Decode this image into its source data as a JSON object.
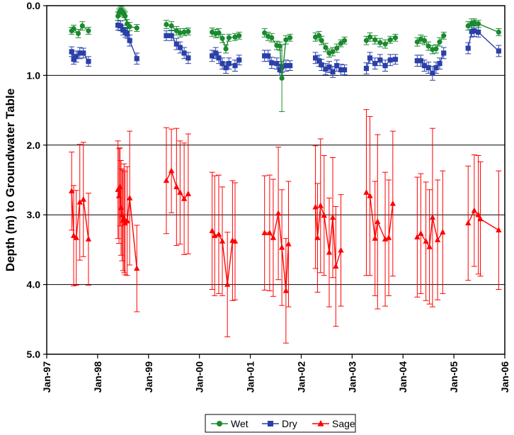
{
  "chart_data": {
    "type": "scatter",
    "title": "",
    "xlabel": "",
    "ylabel": "Depth (m) to Groundwater Table",
    "ylim": [
      0,
      5
    ],
    "y_inverted": true,
    "y_ticks": [
      "0.0",
      "1.0",
      "2.0",
      "3.0",
      "4.0",
      "5.0"
    ],
    "x_ticks": [
      "Jan-97",
      "Jan-98",
      "Jan-99",
      "Jan-00",
      "Jan-01",
      "Jan-02",
      "Jan-03",
      "Jan-04",
      "Jan-05",
      "Jan-06"
    ],
    "xlim": [
      0,
      9
    ],
    "gridlines_y": [
      1.0,
      2.0,
      3.0,
      4.0
    ],
    "legend_position": "bottom-center",
    "series": [
      {
        "name": "Wet",
        "color": "#1a8a2e",
        "marker": "circle",
        "segments": [
          [
            [
              0.49,
              0.36,
              0.05
            ],
            [
              0.53,
              0.33,
              0.05
            ],
            [
              0.62,
              0.4,
              0.06
            ],
            [
              0.7,
              0.29,
              0.06
            ],
            [
              0.82,
              0.36,
              0.05
            ]
          ],
          [
            [
              1.4,
              0.15,
              0.06
            ],
            [
              1.42,
              0.1,
              0.05
            ],
            [
              1.44,
              0.08,
              0.05
            ],
            [
              1.46,
              0.06,
              0.05
            ],
            [
              1.48,
              0.08,
              0.05
            ],
            [
              1.5,
              0.1,
              0.05
            ],
            [
              1.52,
              0.12,
              0.05
            ],
            [
              1.54,
              0.15,
              0.06
            ],
            [
              1.58,
              0.26,
              0.06
            ],
            [
              1.63,
              0.3,
              0.06
            ],
            [
              1.77,
              0.32,
              0.05
            ]
          ],
          [
            [
              2.35,
              0.27,
              0.06
            ],
            [
              2.45,
              0.29,
              0.06
            ],
            [
              2.55,
              0.36,
              0.06
            ],
            [
              2.62,
              0.39,
              0.06
            ],
            [
              2.7,
              0.38,
              0.05
            ],
            [
              2.78,
              0.37,
              0.05
            ]
          ],
          [
            [
              3.25,
              0.38,
              0.06
            ],
            [
              3.32,
              0.4,
              0.06
            ],
            [
              3.38,
              0.39,
              0.06
            ],
            [
              3.45,
              0.47,
              0.06
            ],
            [
              3.52,
              0.62,
              0.06
            ],
            [
              3.58,
              0.46,
              0.05
            ],
            [
              3.7,
              0.45,
              0.05
            ],
            [
              3.78,
              0.43,
              0.05
            ]
          ],
          [
            [
              4.28,
              0.39,
              0.06
            ],
            [
              4.35,
              0.44,
              0.06
            ],
            [
              4.42,
              0.46,
              0.06
            ],
            [
              4.52,
              0.57,
              0.06
            ],
            [
              4.58,
              0.58,
              0.06
            ],
            [
              4.62,
              1.04,
              0.48
            ],
            [
              4.7,
              0.49,
              0.06
            ],
            [
              4.78,
              0.46,
              0.05
            ]
          ],
          [
            [
              5.28,
              0.45,
              0.06
            ],
            [
              5.35,
              0.43,
              0.06
            ],
            [
              5.4,
              0.5,
              0.06
            ],
            [
              5.48,
              0.6,
              0.06
            ],
            [
              5.55,
              0.68,
              0.06
            ],
            [
              5.62,
              0.66,
              0.06
            ],
            [
              5.7,
              0.61,
              0.06
            ],
            [
              5.78,
              0.54,
              0.05
            ],
            [
              5.85,
              0.5,
              0.05
            ]
          ],
          [
            [
              6.28,
              0.5,
              0.06
            ],
            [
              6.35,
              0.45,
              0.06
            ],
            [
              6.45,
              0.49,
              0.06
            ],
            [
              6.55,
              0.53,
              0.06
            ],
            [
              6.65,
              0.55,
              0.06
            ],
            [
              6.75,
              0.49,
              0.05
            ],
            [
              6.85,
              0.46,
              0.05
            ]
          ],
          [
            [
              7.28,
              0.52,
              0.06
            ],
            [
              7.35,
              0.48,
              0.06
            ],
            [
              7.42,
              0.5,
              0.06
            ],
            [
              7.5,
              0.58,
              0.06
            ],
            [
              7.58,
              0.63,
              0.06
            ],
            [
              7.65,
              0.62,
              0.06
            ],
            [
              7.72,
              0.52,
              0.06
            ],
            [
              7.8,
              0.43,
              0.05
            ]
          ],
          [
            [
              8.28,
              0.29,
              0.06
            ],
            [
              8.35,
              0.25,
              0.06
            ],
            [
              8.4,
              0.24,
              0.05
            ],
            [
              8.48,
              0.26,
              0.05
            ],
            [
              8.88,
              0.38,
              0.05
            ]
          ]
        ]
      },
      {
        "name": "Dry",
        "color": "#2a3fa8",
        "marker": "square",
        "segments": [
          [
            [
              0.49,
              0.66,
              0.07
            ],
            [
              0.53,
              0.77,
              0.07
            ],
            [
              0.58,
              0.73,
              0.08
            ],
            [
              0.65,
              0.68,
              0.08
            ],
            [
              0.72,
              0.68,
              0.07
            ],
            [
              0.82,
              0.8,
              0.07
            ]
          ],
          [
            [
              1.4,
              0.28,
              0.07
            ],
            [
              1.45,
              0.29,
              0.07
            ],
            [
              1.5,
              0.35,
              0.07
            ],
            [
              1.55,
              0.38,
              0.07
            ],
            [
              1.58,
              0.4,
              0.07
            ],
            [
              1.63,
              0.5,
              0.08
            ],
            [
              1.77,
              0.76,
              0.08
            ]
          ],
          [
            [
              2.35,
              0.43,
              0.07
            ],
            [
              2.45,
              0.43,
              0.07
            ],
            [
              2.55,
              0.55,
              0.08
            ],
            [
              2.62,
              0.6,
              0.08
            ],
            [
              2.7,
              0.68,
              0.08
            ],
            [
              2.78,
              0.75,
              0.08
            ]
          ],
          [
            [
              3.25,
              0.72,
              0.08
            ],
            [
              3.32,
              0.68,
              0.08
            ],
            [
              3.38,
              0.75,
              0.08
            ],
            [
              3.45,
              0.83,
              0.08
            ],
            [
              3.52,
              0.89,
              0.08
            ],
            [
              3.58,
              0.83,
              0.08
            ],
            [
              3.7,
              0.86,
              0.08
            ],
            [
              3.78,
              0.78,
              0.07
            ]
          ],
          [
            [
              4.28,
              0.72,
              0.08
            ],
            [
              4.35,
              0.72,
              0.08
            ],
            [
              4.42,
              0.82,
              0.08
            ],
            [
              4.52,
              0.83,
              0.08
            ],
            [
              4.58,
              0.92,
              0.08
            ],
            [
              4.62,
              0.88,
              0.08
            ],
            [
              4.7,
              0.86,
              0.08
            ],
            [
              4.78,
              0.86,
              0.07
            ]
          ],
          [
            [
              5.28,
              0.75,
              0.08
            ],
            [
              5.35,
              0.79,
              0.08
            ],
            [
              5.4,
              0.85,
              0.08
            ],
            [
              5.48,
              0.91,
              0.08
            ],
            [
              5.55,
              0.88,
              0.08
            ],
            [
              5.62,
              0.95,
              0.08
            ],
            [
              5.7,
              0.86,
              0.08
            ],
            [
              5.78,
              0.92,
              0.08
            ],
            [
              5.85,
              0.92,
              0.07
            ]
          ],
          [
            [
              6.28,
              0.9,
              0.08
            ],
            [
              6.35,
              0.75,
              0.08
            ],
            [
              6.45,
              0.83,
              0.08
            ],
            [
              6.55,
              0.78,
              0.08
            ],
            [
              6.65,
              0.86,
              0.08
            ],
            [
              6.75,
              0.78,
              0.08
            ],
            [
              6.85,
              0.77,
              0.07
            ]
          ],
          [
            [
              7.28,
              0.79,
              0.08
            ],
            [
              7.35,
              0.79,
              0.08
            ],
            [
              7.42,
              0.86,
              0.08
            ],
            [
              7.5,
              0.89,
              0.08
            ],
            [
              7.58,
              0.97,
              0.1
            ],
            [
              7.65,
              0.89,
              0.08
            ],
            [
              7.72,
              0.83,
              0.08
            ],
            [
              7.8,
              0.68,
              0.08
            ]
          ],
          [
            [
              8.28,
              0.61,
              0.08
            ],
            [
              8.35,
              0.37,
              0.08
            ],
            [
              8.4,
              0.36,
              0.08
            ],
            [
              8.48,
              0.38,
              0.07
            ],
            [
              8.88,
              0.65,
              0.08
            ]
          ]
        ]
      },
      {
        "name": "Sage",
        "color": "#ff0000",
        "marker": "triangle",
        "segments": [
          [
            [
              0.49,
              2.66,
              0.56
            ],
            [
              0.53,
              3.3,
              0.72
            ],
            [
              0.58,
              3.33,
              0.68
            ],
            [
              0.65,
              2.82,
              0.83
            ],
            [
              0.72,
              2.78,
              0.82
            ],
            [
              0.82,
              3.35,
              0.66
            ]
          ],
          [
            [
              1.4,
              2.64,
              0.7
            ],
            [
              1.42,
              2.73,
              0.68
            ],
            [
              1.44,
              2.6,
              0.56
            ],
            [
              1.46,
              2.9,
              0.68
            ],
            [
              1.48,
              3.0,
              0.66
            ],
            [
              1.5,
              3.08,
              0.72
            ],
            [
              1.52,
              3.05,
              0.78
            ],
            [
              1.54,
              3.12,
              0.74
            ],
            [
              1.58,
              3.09,
              0.78
            ],
            [
              1.63,
              2.76,
              0.96
            ],
            [
              1.77,
              3.77,
              0.62
            ]
          ],
          [
            [
              2.35,
              2.51,
              0.76
            ],
            [
              2.45,
              2.37,
              0.6
            ],
            [
              2.55,
              2.6,
              0.84
            ],
            [
              2.62,
              2.68,
              0.74
            ],
            [
              2.7,
              2.77,
              0.8
            ],
            [
              2.78,
              2.7,
              0.86
            ]
          ],
          [
            [
              3.25,
              3.23,
              0.84
            ],
            [
              3.3,
              3.3,
              0.86
            ],
            [
              3.38,
              3.28,
              0.85
            ],
            [
              3.45,
              3.38,
              0.78
            ],
            [
              3.55,
              4.0,
              0.75
            ],
            [
              3.65,
              3.37,
              0.86
            ],
            [
              3.7,
              3.38,
              0.84
            ]
          ],
          [
            [
              4.28,
              3.26,
              0.82
            ],
            [
              4.38,
              3.26,
              0.83
            ],
            [
              4.45,
              3.33,
              0.84
            ],
            [
              4.55,
              2.98,
              0.95
            ],
            [
              4.62,
              3.47,
              0.83
            ],
            [
              4.7,
              4.09,
              0.75
            ],
            [
              4.75,
              3.42,
              0.9
            ]
          ],
          [
            [
              5.28,
              2.89,
              0.88
            ],
            [
              5.32,
              3.33,
              0.78
            ],
            [
              5.38,
              2.87,
              0.96
            ],
            [
              5.45,
              3.01,
              0.86
            ],
            [
              5.55,
              3.54,
              0.78
            ],
            [
              5.62,
              3.04,
              0.86
            ],
            [
              5.68,
              3.74,
              0.86
            ],
            [
              5.78,
              3.51,
              0.8
            ]
          ],
          [
            [
              6.28,
              2.68,
              1.19
            ],
            [
              6.35,
              2.73,
              1.14
            ],
            [
              6.45,
              3.34,
              0.82
            ],
            [
              6.5,
              3.1,
              1.25
            ],
            [
              6.65,
              3.35,
              0.96
            ],
            [
              6.72,
              3.33,
              0.83
            ],
            [
              6.8,
              2.84,
              1.04
            ]
          ],
          [
            [
              7.28,
              3.32,
              0.86
            ],
            [
              7.35,
              3.27,
              0.86
            ],
            [
              7.45,
              3.38,
              0.85
            ],
            [
              7.52,
              3.46,
              0.82
            ],
            [
              7.58,
              3.04,
              1.28
            ],
            [
              7.68,
              3.36,
              0.86
            ],
            [
              7.78,
              3.25,
              0.88
            ]
          ],
          [
            [
              8.28,
              3.12,
              0.82
            ],
            [
              8.4,
              2.94,
              0.8
            ],
            [
              8.48,
              3.0,
              0.85
            ],
            [
              8.52,
              3.06,
              0.82
            ],
            [
              8.88,
              3.22,
              0.85
            ]
          ]
        ]
      }
    ]
  }
}
